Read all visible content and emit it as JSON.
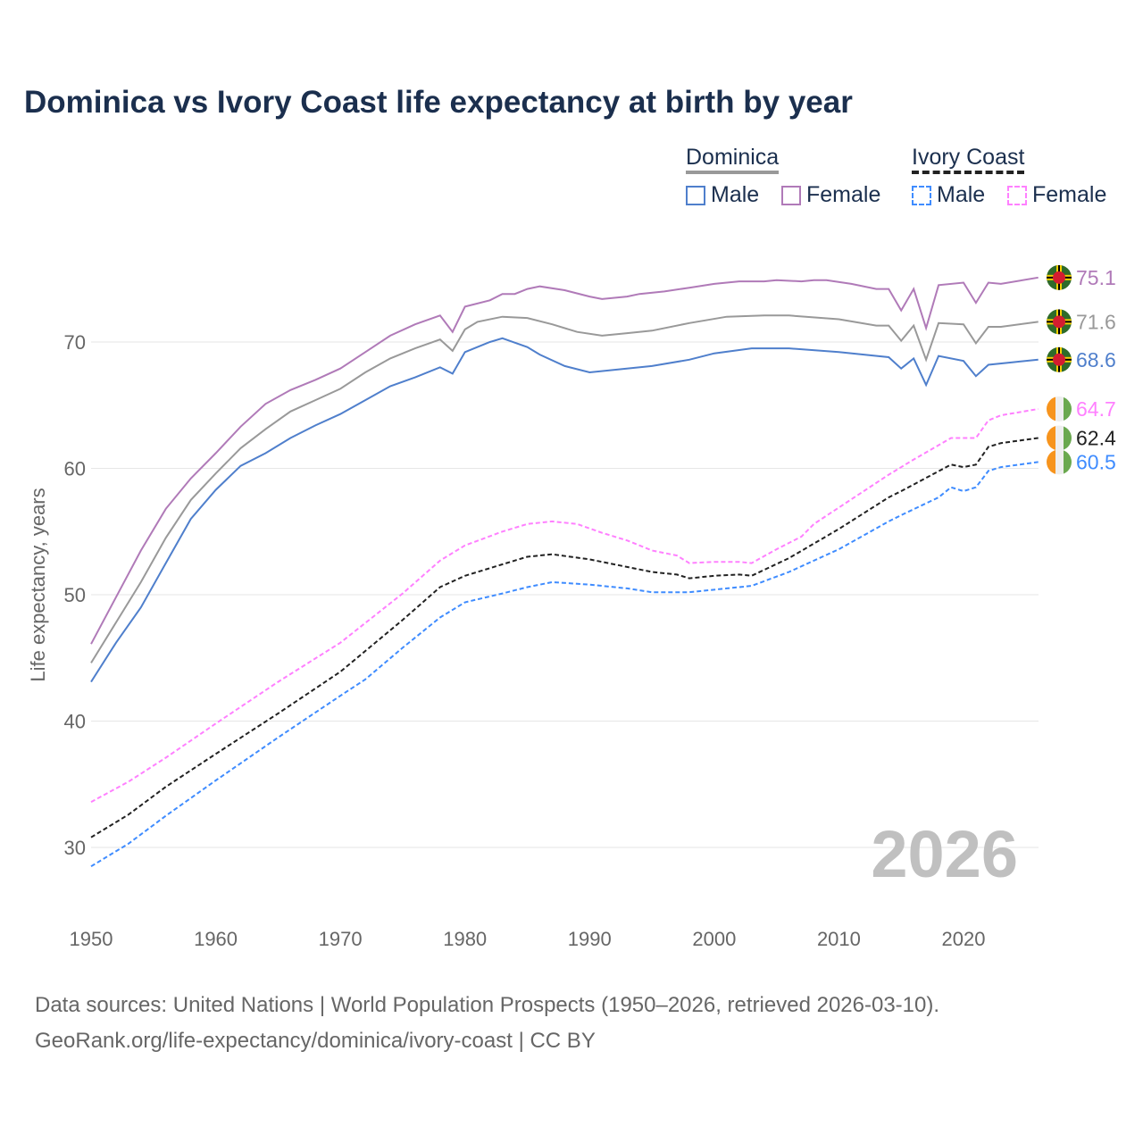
{
  "title": "Dominica vs Ivory Coast life expectancy at birth by year",
  "legend": {
    "groups": [
      {
        "name": "Dominica",
        "items": [
          "Male",
          "Female"
        ]
      },
      {
        "name": "Ivory Coast",
        "items": [
          "Male",
          "Female"
        ]
      }
    ]
  },
  "source": {
    "line1": "Data sources: United Nations | World Population Prospects (1950–2026, retrieved 2026-03-10).",
    "line2": "GeoRank.org/life-expectancy/dominica/ivory-coast | CC BY"
  },
  "chart_data": {
    "type": "line",
    "title": "Dominica vs Ivory Coast life expectancy at birth by year",
    "xlabel": "",
    "ylabel": "Life expectancy, years",
    "xlim": [
      1950,
      2026
    ],
    "ylim": [
      25,
      78
    ],
    "xticks": [
      1950,
      1960,
      1970,
      1980,
      1990,
      2000,
      2010,
      2020
    ],
    "yticks": [
      30,
      40,
      50,
      60,
      70
    ],
    "watermark_year": "2026",
    "grid": true,
    "legend_placement": "top-right",
    "series": [
      {
        "name": "Dominica Female",
        "color": "#b07ab8",
        "dash": false,
        "end_label": "75.1",
        "x": [
          1950,
          1952,
          1954,
          1956,
          1958,
          1960,
          1962,
          1964,
          1966,
          1968,
          1970,
          1972,
          1974,
          1976,
          1978,
          1979,
          1980,
          1982,
          1983,
          1984,
          1985,
          1986,
          1988,
          1990,
          1991,
          1993,
          1994,
          1996,
          1998,
          2000,
          2002,
          2004,
          2005,
          2007,
          2008,
          2009,
          2011,
          2013,
          2014,
          2015,
          2016,
          2017,
          2018,
          2020,
          2021,
          2022,
          2023,
          2026
        ],
        "y": [
          46.1,
          49.8,
          53.5,
          56.8,
          59.2,
          61.2,
          63.3,
          65.1,
          66.2,
          67.0,
          67.9,
          69.2,
          70.5,
          71.4,
          72.1,
          70.8,
          72.8,
          73.3,
          73.8,
          73.8,
          74.2,
          74.4,
          74.1,
          73.6,
          73.4,
          73.6,
          73.8,
          74.0,
          74.3,
          74.6,
          74.8,
          74.8,
          74.9,
          74.8,
          74.9,
          74.9,
          74.6,
          74.2,
          74.2,
          72.5,
          74.2,
          71.1,
          74.5,
          74.7,
          73.1,
          74.7,
          74.6,
          75.1
        ]
      },
      {
        "name": "Dominica",
        "color": "#999999",
        "dash": false,
        "end_label": "71.6",
        "x": [
          1950,
          1952,
          1954,
          1956,
          1958,
          1960,
          1962,
          1964,
          1966,
          1968,
          1970,
          1972,
          1974,
          1976,
          1978,
          1979,
          1980,
          1981,
          1983,
          1985,
          1987,
          1989,
          1991,
          1993,
          1995,
          1998,
          2001,
          2004,
          2006,
          2010,
          2013,
          2014,
          2015,
          2016,
          2017,
          2018,
          2020,
          2021,
          2022,
          2023,
          2026
        ],
        "y": [
          44.6,
          47.8,
          51.0,
          54.5,
          57.5,
          59.6,
          61.6,
          63.1,
          64.5,
          65.4,
          66.3,
          67.6,
          68.7,
          69.5,
          70.2,
          69.3,
          71.0,
          71.6,
          72.0,
          71.9,
          71.4,
          70.8,
          70.5,
          70.7,
          70.9,
          71.5,
          72.0,
          72.1,
          72.1,
          71.8,
          71.3,
          71.3,
          70.1,
          71.3,
          68.6,
          71.5,
          71.4,
          69.9,
          71.2,
          71.2,
          71.6
        ]
      },
      {
        "name": "Dominica Male",
        "color": "#4f7fcc",
        "dash": false,
        "end_label": "68.6",
        "x": [
          1950,
          1952,
          1954,
          1956,
          1958,
          1960,
          1962,
          1964,
          1966,
          1968,
          1970,
          1972,
          1974,
          1976,
          1978,
          1979,
          1980,
          1982,
          1983,
          1985,
          1986,
          1988,
          1990,
          1995,
          1998,
          2000,
          2003,
          2006,
          2010,
          2014,
          2015,
          2016,
          2017,
          2018,
          2020,
          2021,
          2022,
          2024,
          2026
        ],
        "y": [
          43.1,
          46.2,
          49.0,
          52.5,
          56.0,
          58.3,
          60.2,
          61.2,
          62.4,
          63.4,
          64.3,
          65.4,
          66.5,
          67.2,
          68.0,
          67.5,
          69.2,
          70.0,
          70.3,
          69.6,
          69.0,
          68.1,
          67.6,
          68.1,
          68.6,
          69.1,
          69.5,
          69.5,
          69.2,
          68.8,
          67.9,
          68.7,
          66.6,
          68.9,
          68.5,
          67.3,
          68.2,
          68.4,
          68.6
        ]
      },
      {
        "name": "Ivory Coast Female",
        "color": "#ff80ff",
        "dash": true,
        "end_label": "64.7",
        "x": [
          1950,
          1953,
          1956,
          1960,
          1965,
          1970,
          1975,
          1978,
          1980,
          1983,
          1985,
          1987,
          1989,
          1991,
          1993,
          1995,
          1997,
          1998,
          2000,
          2002,
          2003,
          2005,
          2007,
          2008,
          2010,
          2012,
          2014,
          2016,
          2019,
          2021,
          2022,
          2023,
          2026
        ],
        "y": [
          33.6,
          35.2,
          37.1,
          39.8,
          43.1,
          46.2,
          50.1,
          52.7,
          53.9,
          55.0,
          55.6,
          55.8,
          55.6,
          54.9,
          54.3,
          53.5,
          53.1,
          52.5,
          52.6,
          52.6,
          52.5,
          53.6,
          54.6,
          55.6,
          56.9,
          58.2,
          59.5,
          60.7,
          62.4,
          62.4,
          63.8,
          64.2,
          64.7
        ]
      },
      {
        "name": "Ivory Coast",
        "color": "#222222",
        "dash": true,
        "end_label": "62.4",
        "x": [
          1950,
          1953,
          1956,
          1960,
          1965,
          1970,
          1975,
          1978,
          1980,
          1983,
          1985,
          1987,
          1990,
          1993,
          1995,
          1997,
          1998,
          2000,
          2002,
          2003,
          2006,
          2010,
          2014,
          2015,
          2019,
          2020,
          2021,
          2022,
          2023,
          2026
        ],
        "y": [
          30.8,
          32.6,
          34.8,
          37.4,
          40.6,
          43.9,
          48.0,
          50.6,
          51.5,
          52.4,
          53.0,
          53.2,
          52.8,
          52.2,
          51.8,
          51.6,
          51.3,
          51.5,
          51.6,
          51.5,
          52.9,
          55.2,
          57.7,
          58.2,
          60.3,
          60.1,
          60.3,
          61.7,
          62.0,
          62.4
        ]
      },
      {
        "name": "Ivory Coast Male",
        "color": "#3f8cff",
        "dash": true,
        "end_label": "60.5",
        "x": [
          1950,
          1953,
          1956,
          1960,
          1965,
          1970,
          1972,
          1975,
          1978,
          1980,
          1983,
          1985,
          1987,
          1990,
          1993,
          1995,
          1998,
          2001,
          2003,
          2006,
          2010,
          2014,
          2015,
          2018,
          2019,
          2020,
          2021,
          2022,
          2023,
          2026
        ],
        "y": [
          28.5,
          30.3,
          32.5,
          35.3,
          38.7,
          42.0,
          43.3,
          45.8,
          48.2,
          49.4,
          50.1,
          50.6,
          51.0,
          50.8,
          50.5,
          50.2,
          50.2,
          50.5,
          50.7,
          51.8,
          53.6,
          55.8,
          56.3,
          57.7,
          58.5,
          58.2,
          58.5,
          59.8,
          60.1,
          60.5
        ]
      }
    ]
  }
}
